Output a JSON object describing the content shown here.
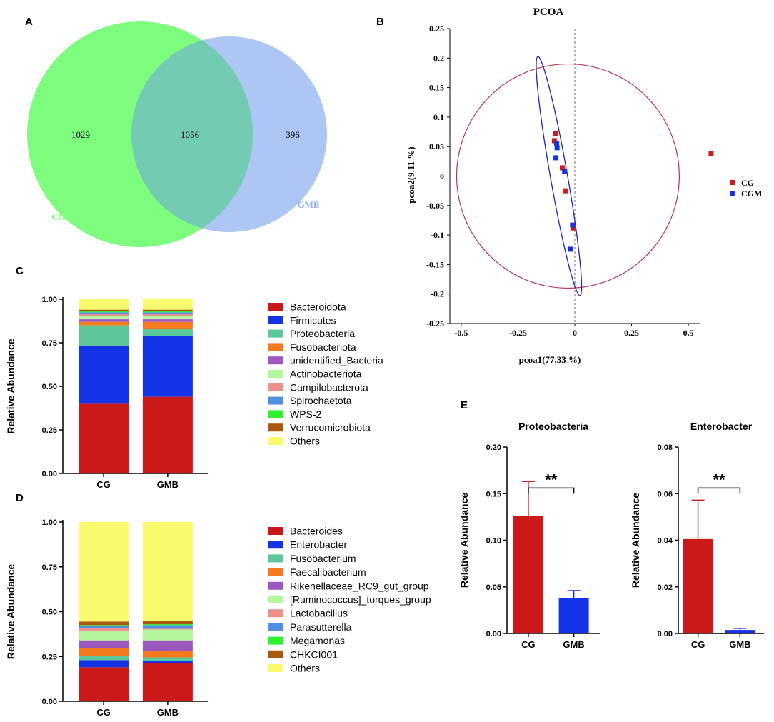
{
  "panels": {
    "a": "A",
    "b": "B",
    "c": "C",
    "d": "D",
    "e": "E"
  },
  "colors": {
    "red": "#cc1a1a",
    "blue": "#1432e6",
    "venn_cg": "#7dfc7d",
    "venn_gmb": "#aec6f3",
    "venn_overlap": "#73cbb4",
    "teal": "#5cc89a",
    "orange": "#f57a1e",
    "purple": "#9b59c0",
    "lightgreen": "#b3f59a",
    "pink": "#eb8f8f",
    "skyblue": "#4f90e3",
    "green": "#2ef02e",
    "brown": "#a8590e",
    "yellow": "#fafa6e",
    "ellipse_red": "#b8345a",
    "ellipse_blue": "#2020c0"
  },
  "chart_data": [
    {
      "type": "venn",
      "sets": [
        {
          "name": "CG",
          "only": "1029"
        },
        {
          "name": "GMB",
          "only": "396"
        }
      ],
      "shared": "1056"
    },
    {
      "type": "scatter",
      "title": "PCOA",
      "xlabel": "pcoa1(77.33 %)",
      "ylabel": "pcoa2(9.11 %)",
      "xlim": [
        -0.55,
        0.55
      ],
      "ylim": [
        -0.25,
        0.25
      ],
      "xticks": [
        "-0.5",
        "-0.25",
        "0",
        "0.25",
        "0.5"
      ],
      "yticks": [
        "0.25",
        "0.2",
        "0.15",
        "0.1",
        "0.05",
        "0",
        "-0.05",
        "-0.1",
        "-0.15",
        "-0.2",
        "-0.25"
      ],
      "series": [
        {
          "name": "CG",
          "points": [
            [
              -0.085,
              0.072
            ],
            [
              -0.09,
              0.06
            ],
            [
              -0.055,
              0.014
            ],
            [
              -0.04,
              -0.025
            ],
            [
              -0.005,
              -0.088
            ],
            [
              0.6,
              0.038
            ]
          ]
        },
        {
          "name": "CGM",
          "points": [
            [
              -0.08,
              0.055
            ],
            [
              -0.078,
              0.048
            ],
            [
              -0.083,
              0.031
            ],
            [
              -0.045,
              0.008
            ],
            [
              -0.01,
              -0.083
            ],
            [
              -0.02,
              -0.124
            ]
          ]
        }
      ],
      "ellipses": [
        {
          "group": "CG",
          "center": [
            -0.03,
            0.0
          ],
          "radii": [
            0.49,
            0.19
          ]
        },
        {
          "group": "CGM",
          "center": [
            -0.07,
            0.0
          ],
          "description": "narrow tilted ellipse"
        }
      ]
    },
    {
      "type": "stacked_bar",
      "ylabel": "Relative Abundance",
      "categories": [
        "CG",
        "GMB"
      ],
      "ylim": [
        0,
        1
      ],
      "yticks": [
        "0.00",
        "0.25",
        "0.50",
        "0.75",
        "1.00"
      ],
      "series": [
        {
          "name": "Bacteroidota",
          "values": [
            0.4,
            0.44
          ]
        },
        {
          "name": "Firmicutes",
          "values": [
            0.33,
            0.35
          ]
        },
        {
          "name": "Proteobacteria",
          "values": [
            0.12,
            0.04
          ]
        },
        {
          "name": "Fusobacteriota",
          "values": [
            0.02,
            0.04
          ]
        },
        {
          "name": "unidentified_Bacteria",
          "values": [
            0.015,
            0.015
          ]
        },
        {
          "name": "Actinobacteriota",
          "values": [
            0.02,
            0.02
          ]
        },
        {
          "name": "Campilobacterota",
          "values": [
            0.01,
            0.01
          ]
        },
        {
          "name": "Spirochaetota",
          "values": [
            0.01,
            0.01
          ]
        },
        {
          "name": "WPS-2",
          "values": [
            0.005,
            0.005
          ]
        },
        {
          "name": "Verrucomicrobiota",
          "values": [
            0.01,
            0.01
          ]
        },
        {
          "name": "Others",
          "values": [
            0.06,
            0.065
          ]
        }
      ]
    },
    {
      "type": "stacked_bar",
      "ylabel": "Relative Abundance",
      "categories": [
        "CG",
        "GMB"
      ],
      "ylim": [
        0,
        1
      ],
      "yticks": [
        "0.00",
        "0.25",
        "0.50",
        "0.75",
        "1.00"
      ],
      "series": [
        {
          "name": "Bacteroides",
          "values": [
            0.19,
            0.215
          ]
        },
        {
          "name": "Enterobacter",
          "values": [
            0.04,
            0.01
          ]
        },
        {
          "name": "Fusobacterium",
          "values": [
            0.025,
            0.02
          ]
        },
        {
          "name": "Faecalibacterium",
          "values": [
            0.04,
            0.035
          ]
        },
        {
          "name": "Rikenellaceae_RC9_gut_group",
          "values": [
            0.045,
            0.06
          ]
        },
        {
          "name": "[Ruminococcus]_torques_group",
          "values": [
            0.05,
            0.06
          ]
        },
        {
          "name": "Lactobacillus",
          "values": [
            0.02,
            0.005
          ]
        },
        {
          "name": "Parasutterella",
          "values": [
            0.01,
            0.02
          ]
        },
        {
          "name": "Megamonas",
          "values": [
            0.005,
            0.005
          ]
        },
        {
          "name": "CHKCI001",
          "values": [
            0.02,
            0.02
          ]
        },
        {
          "name": "Others",
          "values": [
            0.555,
            0.55
          ]
        }
      ]
    },
    {
      "type": "bar",
      "title": "Proteobacteria",
      "ylabel": "Relative Abundance",
      "categories": [
        "CG",
        "GMB"
      ],
      "values": [
        0.126,
        0.038
      ],
      "errors": [
        0.037,
        0.008
      ],
      "ylim": [
        0,
        0.2
      ],
      "yticks": [
        "0.00",
        "0.05",
        "0.10",
        "0.15",
        "0.20"
      ],
      "significance": "**"
    },
    {
      "type": "bar",
      "title": "Enterobacter",
      "ylabel": "Relative Abundance",
      "categories": [
        "CG",
        "GMB"
      ],
      "values": [
        0.0405,
        0.0015
      ],
      "errors": [
        0.0167,
        0.0007
      ],
      "ylim": [
        0,
        0.08
      ],
      "yticks": [
        "0.00",
        "0.02",
        "0.04",
        "0.06",
        "0.08"
      ],
      "significance": "**"
    }
  ]
}
